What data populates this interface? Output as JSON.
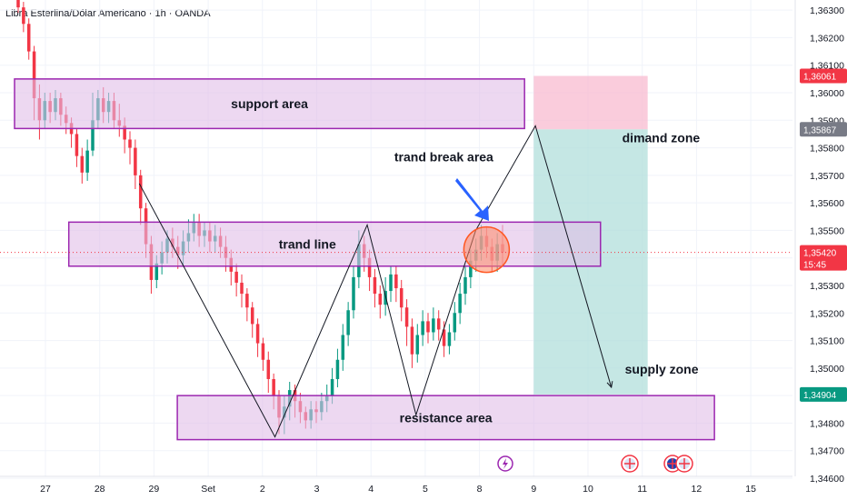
{
  "header": {
    "title": "Libra Esterlina/Dólar Americano · 1h · OANDA"
  },
  "chart_data": {
    "type": "candlestick",
    "symbol": "GBPUSD",
    "timeframe": "1h",
    "ylim": [
      1.346,
      1.3635
    ],
    "y_ticks": [
      "1,36300",
      "1,36200",
      "1,36100",
      "1,36000",
      "1,35900",
      "1,35800",
      "1,35700",
      "1,35600",
      "1,35500",
      "1,35400",
      "1,35300",
      "1,35200",
      "1,35100",
      "1,35000",
      "1,34900",
      "1,34800",
      "1,34700",
      "1,34600"
    ],
    "y_tick_values": [
      1.363,
      1.362,
      1.361,
      1.36,
      1.359,
      1.358,
      1.357,
      1.356,
      1.355,
      1.354,
      1.353,
      1.352,
      1.351,
      1.35,
      1.349,
      1.348,
      1.347,
      1.346
    ],
    "x_ticks": [
      "27",
      "28",
      "29",
      "Set",
      "2",
      "3",
      "4",
      "5",
      "8",
      "9",
      "10",
      "11",
      "12",
      "15"
    ],
    "x_tick_index": [
      0,
      1,
      2,
      3,
      4,
      5,
      6,
      7,
      8,
      9,
      10,
      11,
      12,
      13
    ],
    "price_tags": [
      {
        "label": "1,36061",
        "value": 1.36061,
        "color": "#f23645"
      },
      {
        "label": "1,35867",
        "value": 1.35867,
        "color": "#787b86"
      },
      {
        "label": "1,35420",
        "sublabel": "15:45",
        "value": 1.3542,
        "color": "#f23645"
      },
      {
        "label": "1,34904",
        "value": 1.34904,
        "color": "#089981"
      }
    ],
    "last_price": 1.3542,
    "colors": {
      "up": "#089981",
      "down": "#f23645",
      "zone_fill": "#e1bee7",
      "zone_stroke": "#9c27b0",
      "stop": "#f8bbd0",
      "target": "#b2dfdb"
    },
    "zones": [
      {
        "label": "support area",
        "top": 1.3605,
        "bottom": 1.3587,
        "from": 0.0,
        "to": 9.4
      },
      {
        "label": "trand line",
        "top": 1.3553,
        "bottom": 1.3537,
        "from": 1.0,
        "to": 10.8
      },
      {
        "label": "resistance area",
        "top": 1.349,
        "bottom": 1.3474,
        "from": 3.0,
        "to": 12.9
      }
    ],
    "position": {
      "entry": 1.35867,
      "stop": 1.36061,
      "target": 1.34904,
      "from": 9.0,
      "to": 11.1
    },
    "path": [
      [
        2.3,
        1.3567
      ],
      [
        4.8,
        1.3475
      ],
      [
        6.5,
        1.3552
      ],
      [
        7.4,
        1.3483
      ],
      [
        8.5,
        1.355
      ],
      [
        9.6,
        1.3588
      ],
      [
        11.0,
        1.3493
      ]
    ],
    "circle": {
      "x": 8.7,
      "y": 1.3543
    },
    "annotations": [
      {
        "label": "trand break area",
        "x": 7.0,
        "y": 1.3575
      },
      {
        "label": "dimand zone",
        "x": 11.2,
        "y": 1.3582
      },
      {
        "label": "supply zone",
        "x": 11.25,
        "y": 1.3498
      }
    ],
    "candles": [
      [
        1.3638,
        1.3631,
        1.364,
        1.3629
      ],
      [
        1.3631,
        1.3625,
        1.3633,
        1.3622
      ],
      [
        1.3625,
        1.3615,
        1.3627,
        1.3612
      ],
      [
        1.3615,
        1.3598,
        1.3617,
        1.359
      ],
      [
        1.3598,
        1.359,
        1.3603,
        1.3583
      ],
      [
        1.359,
        1.3597,
        1.36,
        1.3587
      ],
      [
        1.3597,
        1.3593,
        1.36,
        1.3589
      ],
      [
        1.3593,
        1.3598,
        1.3601,
        1.359
      ],
      [
        1.3598,
        1.3592,
        1.36,
        1.3588
      ],
      [
        1.3592,
        1.3589,
        1.3595,
        1.3585
      ],
      [
        1.3589,
        1.3585,
        1.3591,
        1.358
      ],
      [
        1.3585,
        1.3577,
        1.3587,
        1.3573
      ],
      [
        1.3577,
        1.3571,
        1.358,
        1.3567
      ],
      [
        1.3571,
        1.3579,
        1.3583,
        1.3568
      ],
      [
        1.3579,
        1.359,
        1.36,
        1.3577
      ],
      [
        1.359,
        1.3598,
        1.3601,
        1.3587
      ],
      [
        1.3598,
        1.3593,
        1.3602,
        1.3589
      ],
      [
        1.3593,
        1.3597,
        1.36,
        1.3589
      ],
      [
        1.3597,
        1.359,
        1.36,
        1.3587
      ],
      [
        1.359,
        1.3588,
        1.3596,
        1.3584
      ],
      [
        1.3588,
        1.3583,
        1.3591,
        1.3578
      ],
      [
        1.3583,
        1.358,
        1.3586,
        1.3574
      ],
      [
        1.358,
        1.357,
        1.3583,
        1.3565
      ],
      [
        1.357,
        1.3558,
        1.3572,
        1.3552
      ],
      [
        1.3558,
        1.3545,
        1.356,
        1.354
      ],
      [
        1.3545,
        1.3532,
        1.3548,
        1.3527
      ],
      [
        1.3532,
        1.3538,
        1.3541,
        1.3529
      ],
      [
        1.3538,
        1.3542,
        1.3546,
        1.3534
      ],
      [
        1.3542,
        1.3547,
        1.355,
        1.3538
      ],
      [
        1.3547,
        1.3544,
        1.3551,
        1.354
      ],
      [
        1.3544,
        1.3541,
        1.3548,
        1.3536
      ],
      [
        1.3541,
        1.3546,
        1.355,
        1.3537
      ],
      [
        1.3546,
        1.3549,
        1.3554,
        1.3542
      ],
      [
        1.3549,
        1.3553,
        1.3556,
        1.3546
      ],
      [
        1.3553,
        1.3548,
        1.3556,
        1.3544
      ],
      [
        1.3548,
        1.355,
        1.3553,
        1.3544
      ],
      [
        1.355,
        1.3546,
        1.3553,
        1.3542
      ],
      [
        1.3546,
        1.3548,
        1.3552,
        1.3542
      ],
      [
        1.3548,
        1.3544,
        1.3551,
        1.354
      ],
      [
        1.3544,
        1.354,
        1.3548,
        1.3535
      ],
      [
        1.354,
        1.3535,
        1.3543,
        1.353
      ],
      [
        1.3535,
        1.3531,
        1.3538,
        1.3526
      ],
      [
        1.3531,
        1.3527,
        1.3534,
        1.3522
      ],
      [
        1.3527,
        1.3522,
        1.3529,
        1.3517
      ],
      [
        1.3522,
        1.3516,
        1.3524,
        1.3511
      ],
      [
        1.3516,
        1.3509,
        1.3518,
        1.3504
      ],
      [
        1.3509,
        1.3503,
        1.3511,
        1.3499
      ],
      [
        1.3503,
        1.3496,
        1.3506,
        1.3491
      ],
      [
        1.3496,
        1.349,
        1.3498,
        1.3485
      ],
      [
        1.349,
        1.3482,
        1.3492,
        1.3476
      ],
      [
        1.3482,
        1.3486,
        1.349,
        1.3476
      ],
      [
        1.3486,
        1.3492,
        1.3495,
        1.3481
      ],
      [
        1.3492,
        1.3488,
        1.3494,
        1.3482
      ],
      [
        1.3488,
        1.3484,
        1.3491,
        1.348
      ],
      [
        1.3484,
        1.3481,
        1.3486,
        1.3478
      ],
      [
        1.3481,
        1.3485,
        1.3488,
        1.3478
      ],
      [
        1.3485,
        1.3484,
        1.3488,
        1.348
      ],
      [
        1.3484,
        1.3488,
        1.3491,
        1.3481
      ],
      [
        1.3488,
        1.349,
        1.3494,
        1.3484
      ],
      [
        1.349,
        1.3496,
        1.35,
        1.3487
      ],
      [
        1.3496,
        1.3503,
        1.3507,
        1.3493
      ],
      [
        1.3503,
        1.3512,
        1.3516,
        1.3499
      ],
      [
        1.3512,
        1.3521,
        1.3524,
        1.3508
      ],
      [
        1.3521,
        1.3533,
        1.3537,
        1.3518
      ],
      [
        1.3533,
        1.3545,
        1.355,
        1.3529
      ],
      [
        1.3545,
        1.354,
        1.3548,
        1.3535
      ],
      [
        1.354,
        1.3533,
        1.3543,
        1.3528
      ],
      [
        1.3533,
        1.3527,
        1.3536,
        1.3522
      ],
      [
        1.3527,
        1.3523,
        1.353,
        1.3518
      ],
      [
        1.3523,
        1.3528,
        1.3533,
        1.3519
      ],
      [
        1.3528,
        1.3534,
        1.3537,
        1.3524
      ],
      [
        1.3534,
        1.3529,
        1.3537,
        1.3524
      ],
      [
        1.3529,
        1.3522,
        1.3532,
        1.3517
      ],
      [
        1.3522,
        1.3515,
        1.3525,
        1.3508
      ],
      [
        1.3515,
        1.3505,
        1.3518,
        1.35
      ],
      [
        1.3505,
        1.3512,
        1.3516,
        1.3502
      ],
      [
        1.3512,
        1.3517,
        1.3521,
        1.3508
      ],
      [
        1.3517,
        1.3513,
        1.352,
        1.3509
      ],
      [
        1.3513,
        1.3518,
        1.3522,
        1.351
      ],
      [
        1.3518,
        1.3514,
        1.3521,
        1.351
      ],
      [
        1.3514,
        1.3508,
        1.3517,
        1.3504
      ],
      [
        1.3508,
        1.3513,
        1.3516,
        1.3505
      ],
      [
        1.3513,
        1.352,
        1.3524,
        1.351
      ],
      [
        1.352,
        1.3527,
        1.3531,
        1.3516
      ],
      [
        1.3527,
        1.3533,
        1.3537,
        1.3523
      ],
      [
        1.3533,
        1.3539,
        1.3543,
        1.3529
      ],
      [
        1.3539,
        1.3543,
        1.3547,
        1.3535
      ],
      [
        1.3543,
        1.3548,
        1.3552,
        1.3539
      ],
      [
        1.3548,
        1.3544,
        1.3551,
        1.354
      ],
      [
        1.3544,
        1.3539,
        1.3547,
        1.3535
      ],
      [
        1.3539,
        1.3545,
        1.3549,
        1.3535
      ],
      [
        1.3545,
        1.3542,
        1.3552,
        1.3537
      ]
    ]
  }
}
